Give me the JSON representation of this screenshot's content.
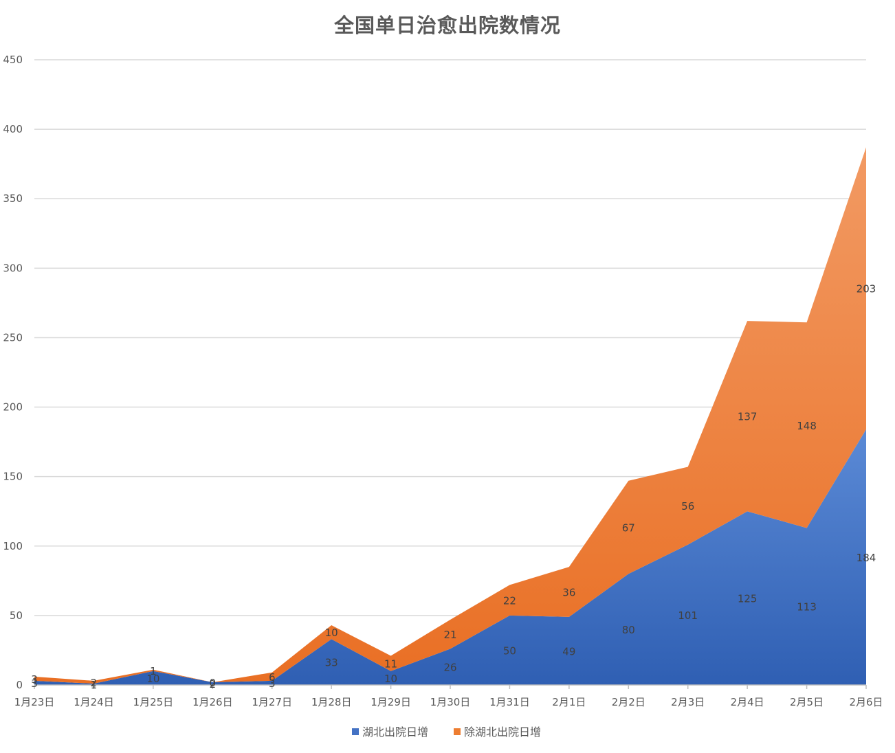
{
  "chart_data": {
    "type": "area",
    "stacked": true,
    "title": "全国单日治愈出院数情况",
    "xlabel": "",
    "ylabel": "",
    "categories": [
      "1月23日",
      "1月24日",
      "1月25日",
      "1月26日",
      "1月27日",
      "1月28日",
      "1月29日",
      "1月30日",
      "1月31日",
      "2月1日",
      "2月2日",
      "2月3日",
      "2月4日",
      "2月5日",
      "2月6日"
    ],
    "ylim": [
      0,
      450
    ],
    "yticks": [
      0,
      50,
      100,
      150,
      200,
      250,
      300,
      350,
      400,
      450
    ],
    "grid": true,
    "legend_position": "bottom",
    "series": [
      {
        "name": "湖北出院日增",
        "color": "#4472c4",
        "values": [
          3,
          1,
          10,
          2,
          3,
          33,
          10,
          26,
          50,
          49,
          80,
          101,
          125,
          113,
          184
        ]
      },
      {
        "name": "除湖北出院日增",
        "color": "#ed7d31",
        "values": [
          3,
          2,
          1,
          0,
          6,
          10,
          11,
          21,
          22,
          36,
          67,
          56,
          137,
          148,
          203
        ]
      }
    ]
  }
}
